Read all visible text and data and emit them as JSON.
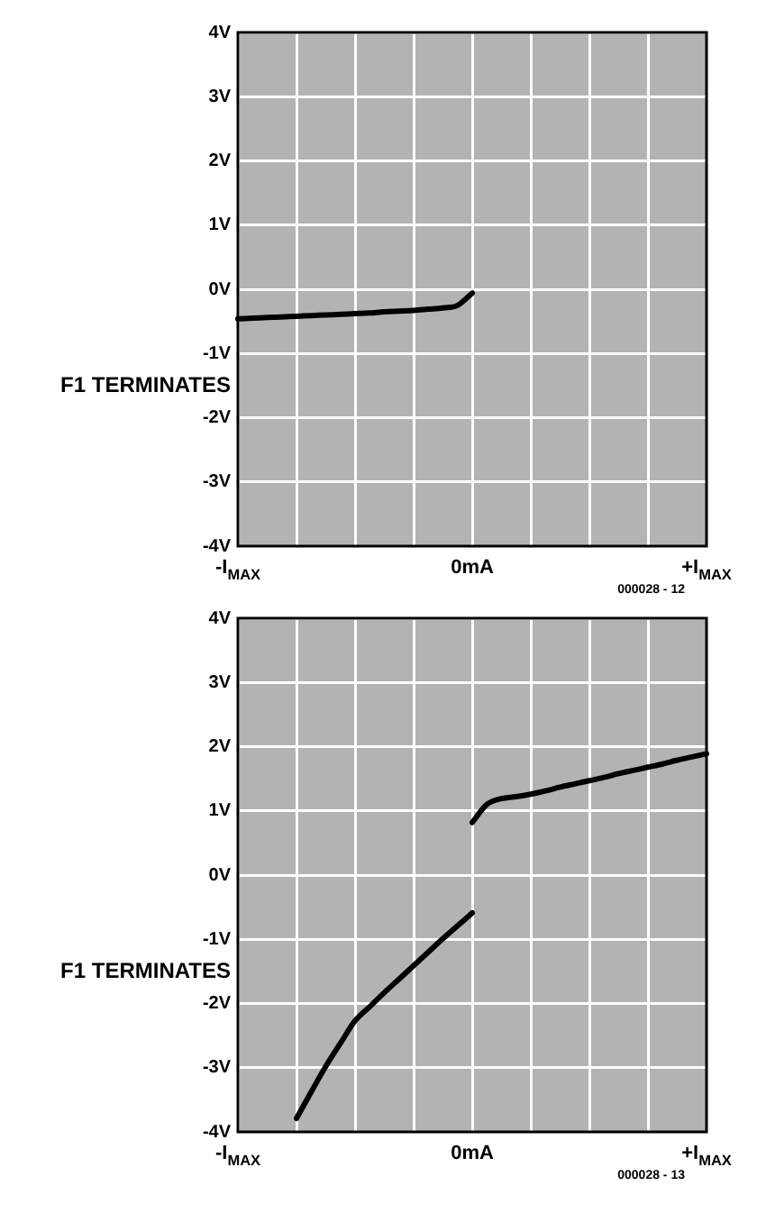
{
  "chart_data": [
    {
      "type": "line",
      "ylabel": "F1 TERMINATES",
      "categories": [
        "-I$_{MAX}$",
        null,
        null,
        null,
        null,
        null,
        null,
        null,
        null,
        null,
        null,
        null,
        null,
        null,
        null,
        null,
        "0mA",
        null,
        null,
        null,
        null,
        null,
        null,
        null,
        null,
        null,
        null,
        null,
        null,
        null,
        null,
        null,
        "+I$_{MAX}$"
      ],
      "ylim": [
        -4,
        4
      ],
      "yticks": [
        {
          "value": -4,
          "label": "-4V"
        },
        {
          "value": -3,
          "label": "-3V"
        },
        {
          "value": -2,
          "label": "-2V"
        },
        {
          "value": -1,
          "label": "-1V"
        },
        {
          "value": 0,
          "label": "0V"
        },
        {
          "value": 1,
          "label": "1V"
        },
        {
          "value": 2,
          "label": "2V"
        },
        {
          "value": 3,
          "label": "3V"
        },
        {
          "value": 4,
          "label": "4V"
        }
      ],
      "grid": true,
      "legend": false,
      "marker": "none",
      "line_style": "solid",
      "annotations": [
        "000028 - 12"
      ],
      "series": [
        {
          "color": "#000000",
          "values": [
            -0.46,
            -0.45,
            -0.44,
            -0.43,
            -0.42,
            -0.41,
            -0.4,
            -0.39,
            -0.38,
            -0.37,
            -0.35,
            -0.34,
            -0.33,
            -0.31,
            -0.29,
            -0.25,
            -0.06,
            null,
            null,
            null,
            null,
            null,
            null,
            null,
            null,
            null,
            null,
            null,
            null,
            null,
            null,
            null,
            null
          ]
        }
      ]
    },
    {
      "type": "line",
      "ylabel": "F1 TERMINATES",
      "categories": [
        "-I$_{MAX}$",
        null,
        null,
        null,
        null,
        null,
        null,
        null,
        null,
        null,
        null,
        null,
        null,
        null,
        null,
        null,
        "0mA",
        null,
        null,
        null,
        null,
        null,
        null,
        null,
        null,
        null,
        null,
        null,
        null,
        null,
        null,
        null,
        "+I$_{MAX}$"
      ],
      "ylim": [
        -4,
        4
      ],
      "yticks": [
        {
          "value": -4,
          "label": "-4V"
        },
        {
          "value": -3,
          "label": "-3V"
        },
        {
          "value": -2,
          "label": "-2V"
        },
        {
          "value": -1,
          "label": "-1V"
        },
        {
          "value": 0,
          "label": "0V"
        },
        {
          "value": 1,
          "label": "1V"
        },
        {
          "value": 2,
          "label": "2V"
        },
        {
          "value": 3,
          "label": "3V"
        },
        {
          "value": 4,
          "label": "4V"
        }
      ],
      "grid": true,
      "legend": false,
      "marker": "none",
      "line_style": "solid",
      "annotations": [
        "000028 - 13"
      ],
      "series": [
        {
          "color": "#000000",
          "values": [
            null,
            null,
            null,
            null,
            -3.79,
            -3.38,
            -2.98,
            -2.62,
            -2.27,
            -2.05,
            -1.83,
            -1.62,
            -1.41,
            -1.2,
            -0.99,
            -0.79,
            -0.59,
            null,
            null,
            null,
            null,
            null,
            null,
            null,
            null,
            null,
            null,
            null,
            null,
            null,
            null,
            null,
            null
          ]
        },
        {
          "color": "#000000",
          "values": [
            null,
            null,
            null,
            null,
            null,
            null,
            null,
            null,
            null,
            null,
            null,
            null,
            null,
            null,
            null,
            null,
            0.82,
            1.1,
            1.19,
            1.22,
            1.26,
            1.31,
            1.37,
            1.42,
            1.47,
            1.52,
            1.58,
            1.63,
            1.68,
            1.73,
            1.79,
            1.84,
            1.89
          ]
        }
      ]
    }
  ]
}
